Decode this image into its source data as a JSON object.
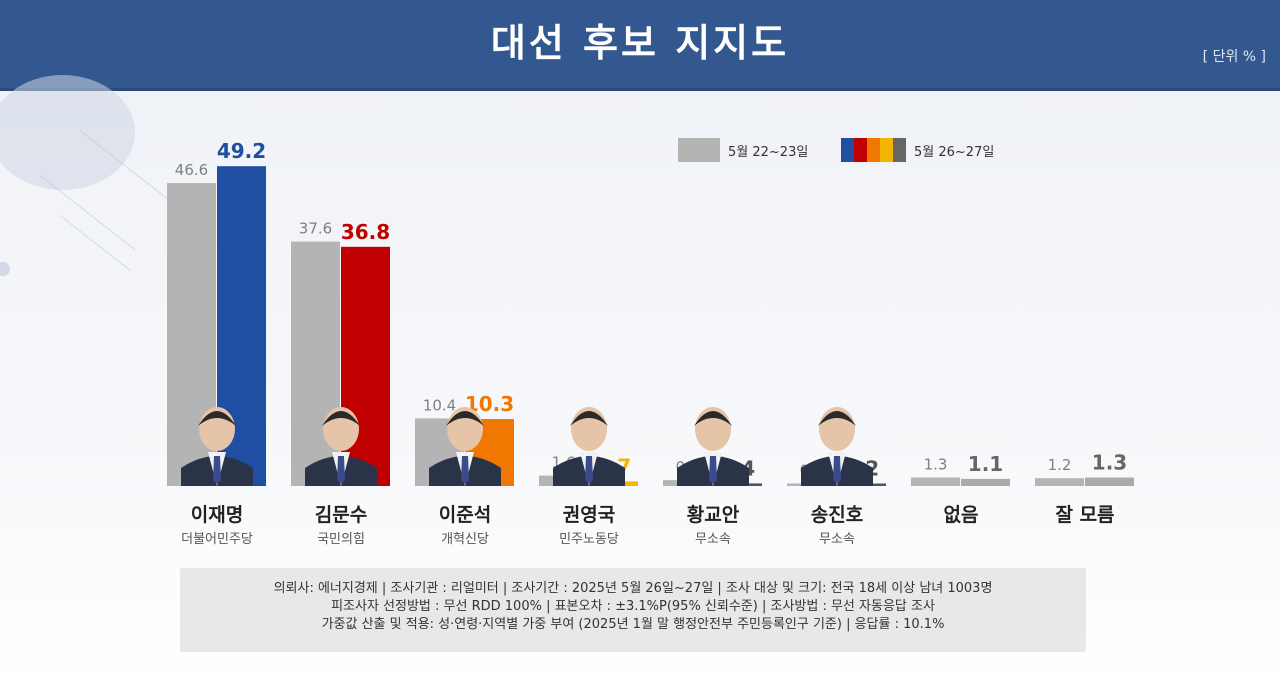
{
  "header": {
    "title": "대선 후보 지지도",
    "unit": "[ 단위 % ]"
  },
  "legend": [
    {
      "label": "5월 22~23일",
      "colors": [
        "#b4b4b4"
      ]
    },
    {
      "label": "5월 26~27일",
      "colors": [
        "#1e4fa3",
        "#c00000",
        "#f07800",
        "#f5b400",
        "#666666"
      ]
    }
  ],
  "candidates": [
    {
      "name": "이재명",
      "party": "더불어민주당",
      "has_photo": true
    },
    {
      "name": "김문수",
      "party": "국민의힘",
      "has_photo": true
    },
    {
      "name": "이준석",
      "party": "개혁신당",
      "has_photo": true
    },
    {
      "name": "권영국",
      "party": "민주노동당",
      "has_photo": true
    },
    {
      "name": "황교안",
      "party": "무소속",
      "has_photo": true
    },
    {
      "name": "송진호",
      "party": "무소속",
      "has_photo": true
    },
    {
      "name": "없음",
      "party": "",
      "has_photo": false
    },
    {
      "name": "잘 모름",
      "party": "",
      "has_photo": false
    }
  ],
  "chart_data": {
    "type": "bar",
    "title": "대선 후보 지지도",
    "unit": "%",
    "categories": [
      "이재명",
      "김문수",
      "이준석",
      "권영국",
      "황교안",
      "송진호",
      "없음",
      "잘 모름"
    ],
    "series": [
      {
        "name": "5월 22~23일",
        "values": [
          46.6,
          37.6,
          10.4,
          1.6,
          0.9,
          0.3,
          1.3,
          1.2
        ],
        "labels": [
          "46.6",
          "37.6",
          "10.4",
          "1.6",
          "0.9",
          "0.3",
          "1.3",
          "1.2"
        ],
        "color": "#b4b4b4"
      },
      {
        "name": "5월 26~27일",
        "values": [
          49.2,
          36.8,
          10.3,
          0.7,
          0.4,
          0.2,
          1.1,
          1.3
        ],
        "labels": [
          "49.2",
          "36.8",
          "10.3",
          "0.7",
          "0.4",
          "0.2",
          "1.1",
          "1.3"
        ],
        "colors": [
          "#1e4fa3",
          "#c00000",
          "#f07800",
          "#f5b400",
          "#555555",
          "#555555",
          "#aaaaaa",
          "#aaaaaa"
        ],
        "label_colors": [
          "#1e4fa3",
          "#c00000",
          "#f07800",
          "#f5b400",
          "#555555",
          "#555555",
          "#666666",
          "#666666"
        ]
      }
    ],
    "ylim": [
      0,
      50
    ],
    "grid": false,
    "legend_position": "top-right"
  },
  "note": {
    "line1": "의뢰사: 에너지경제 | 조사기관 : 리얼미터  |  조사기간 : 2025년 5월 26일~27일 | 조사 대상 및 크기: 전국 18세 이상 남녀 1003명",
    "line2": "피조사자 선정방법 : 무선 RDD 100% | 표본오차 : ±3.1%P(95% 신뢰수준) | 조사방법 : 무선 자동응답 조사",
    "line3": "가중값 산출 및 적용: 성·연령·지역별 가중 부여 (2025년 1월 말 행정안전부 주민등록인구 기준) | 응답률 : 10.1%"
  }
}
